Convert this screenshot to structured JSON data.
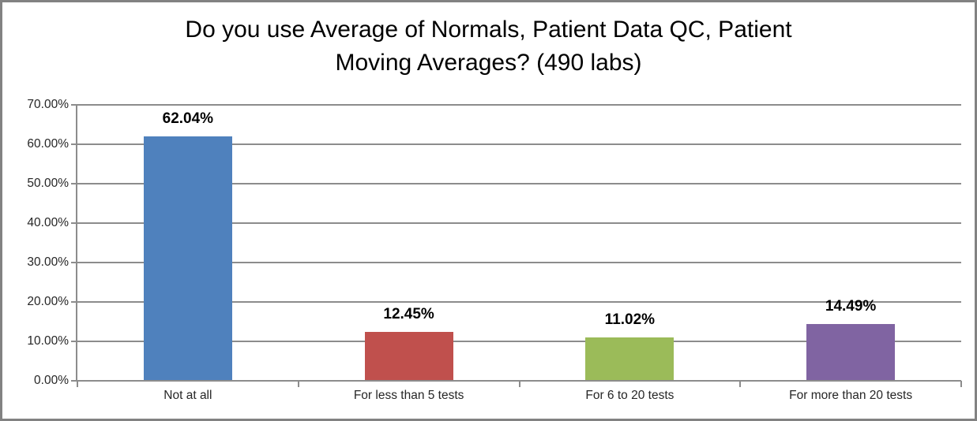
{
  "frame": {
    "background": "#ffffff",
    "border_color": "#828282"
  },
  "chart_data": {
    "type": "bar",
    "title": "Do you use Average of Normals, Patient Data QC, Patient Moving Averages? (490 labs)",
    "title_lines": [
      "Do you use Average of Normals, Patient Data QC, Patient",
      "Moving Averages? (490 labs)"
    ],
    "categories": [
      "Not at all",
      "For less than 5 tests",
      "For 6 to 20 tests",
      "For more than 20 tests"
    ],
    "values": [
      62.04,
      12.45,
      11.02,
      14.49
    ],
    "data_labels": [
      "62.04%",
      "12.45%",
      "11.02%",
      "14.49%"
    ],
    "bar_colors": [
      "#4F81BD",
      "#C0504D",
      "#9BBB59",
      "#8064A2"
    ],
    "xlabel": "",
    "ylabel": "",
    "ylim": [
      0,
      70
    ],
    "y_ticks": [
      0,
      10,
      20,
      30,
      40,
      50,
      60,
      70
    ],
    "y_tick_labels": [
      "0.00%",
      "10.00%",
      "20.00%",
      "30.00%",
      "40.00%",
      "50.00%",
      "60.00%",
      "70.00%"
    ],
    "grid": true,
    "gridline_color": "#8C8C8C",
    "axis_color": "#8C8C8C",
    "legend": "none"
  }
}
